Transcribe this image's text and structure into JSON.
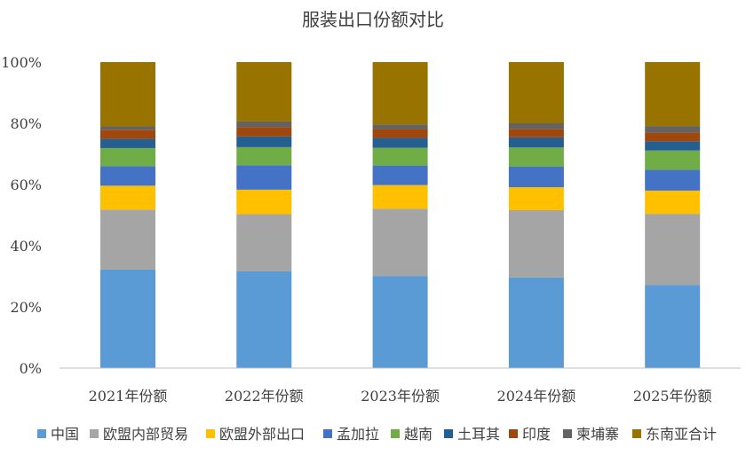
{
  "chart_data": {
    "type": "bar",
    "stacked": true,
    "percent": true,
    "title": "服装出口份额对比",
    "categories": [
      "2021年份额",
      "2022年份额",
      "2023年份额",
      "2024年份额",
      "2025年份额"
    ],
    "ylim": [
      0,
      100
    ],
    "yticks": [
      "0%",
      "20%",
      "40%",
      "60%",
      "80%",
      "100%"
    ],
    "grid": false,
    "legend_position": "bottom",
    "series": [
      {
        "name": "中国",
        "color": "#5B9BD5",
        "values": [
          32.2,
          31.6,
          30.1,
          29.6,
          27.2
        ]
      },
      {
        "name": "欧盟内部贸易",
        "color": "#A5A5A5",
        "values": [
          19.6,
          18.7,
          22.0,
          22.0,
          23.2
        ]
      },
      {
        "name": "欧盟外部出口",
        "color": "#FFC000",
        "values": [
          7.8,
          8.0,
          7.7,
          7.5,
          7.6
        ]
      },
      {
        "name": "孟加拉",
        "color": "#4472C4",
        "values": [
          6.4,
          8.0,
          6.4,
          6.8,
          6.8
        ]
      },
      {
        "name": "越南",
        "color": "#70AD47",
        "values": [
          5.9,
          5.9,
          5.8,
          6.2,
          6.3
        ]
      },
      {
        "name": "土耳其",
        "color": "#255E91",
        "values": [
          3.0,
          3.5,
          3.2,
          3.3,
          3.0
        ]
      },
      {
        "name": "印度",
        "color": "#9E480E",
        "values": [
          3.0,
          3.1,
          2.9,
          2.8,
          2.9
        ]
      },
      {
        "name": "柬埔寨",
        "color": "#636363",
        "values": [
          1.1,
          1.8,
          1.5,
          1.8,
          2.1
        ]
      },
      {
        "name": "东南亚合计",
        "color": "#997300",
        "values": [
          21.0,
          19.4,
          20.4,
          20.0,
          20.9
        ]
      }
    ]
  }
}
